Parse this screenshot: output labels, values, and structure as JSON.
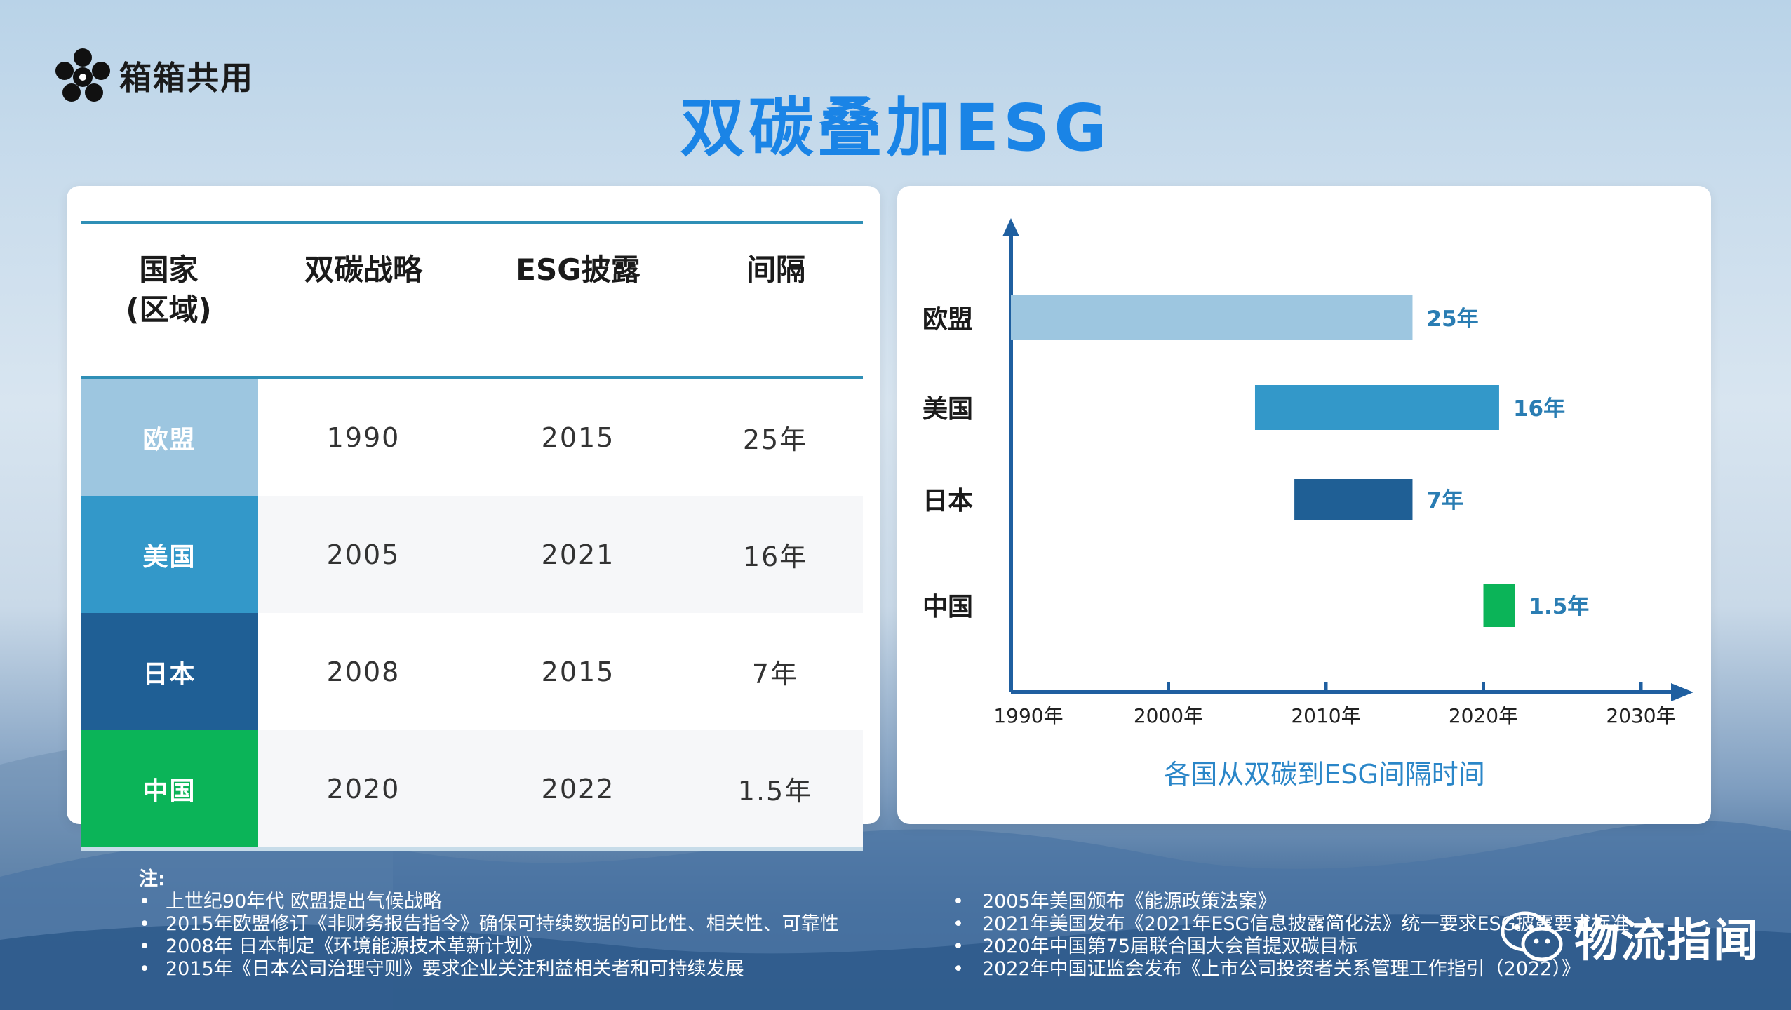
{
  "logo": {
    "text": "箱箱共用",
    "icon": "flower-logo-icon"
  },
  "title": "双碳叠加ESG",
  "table": {
    "headers": [
      "国家\n(区域)",
      "双碳战略",
      "ESG披露",
      "间隔"
    ],
    "rows": [
      {
        "country": "欧盟",
        "carbon": "1990",
        "esg": "2015",
        "gap": "25年",
        "color": "#9dc6e0"
      },
      {
        "country": "美国",
        "carbon": "2005",
        "esg": "2021",
        "gap": "16年",
        "color": "#3398c9"
      },
      {
        "country": "日本",
        "carbon": "2008",
        "esg": "2015",
        "gap": "7年",
        "color": "#1f5f95"
      },
      {
        "country": "中国",
        "carbon": "2020",
        "esg": "2022",
        "gap": "1.5年",
        "color": "#0bb458"
      }
    ]
  },
  "chart_data": {
    "type": "bar",
    "subtype": "floating-horizontal",
    "title": "各国从双碳到ESG间隔时间",
    "x_tick_labels": [
      "1990年",
      "2000年",
      "2010年",
      "2020年",
      "2030年"
    ],
    "x_ticks": [
      1990,
      2000,
      2010,
      2020,
      2030
    ],
    "xlim": [
      1990,
      2036
    ],
    "categories": [
      "欧盟",
      "美国",
      "日本",
      "中国"
    ],
    "bars": [
      {
        "label": "欧盟",
        "start": 1990,
        "end": 2015.5,
        "value_label": "25年",
        "color": "#9dc6e0",
        "label_color": "#2a7db3"
      },
      {
        "label": "美国",
        "start": 2005.5,
        "end": 2021,
        "value_label": "16年",
        "color": "#3398c9",
        "label_color": "#2a7db3"
      },
      {
        "label": "日本",
        "start": 2008,
        "end": 2015.5,
        "value_label": "7年",
        "color": "#1f5f95",
        "label_color": "#2a7db3"
      },
      {
        "label": "中国",
        "start": 2020,
        "end": 2022,
        "value_label": "1.5年",
        "color": "#0bb458",
        "label_color": "#2a7db3"
      }
    ],
    "axis_color": "#1f5fa0",
    "grid": false,
    "legend": "none"
  },
  "notes": {
    "heading": "注:",
    "left": [
      "上世纪90年代 欧盟提出气候战略",
      "2015年欧盟修订《非财务报告指令》确保可持续数据的可比性、相关性、可靠性",
      "2008年 日本制定《环境能源技术革新计划》",
      "2015年《日本公司治理守则》要求企业关注利益相关者和可持续发展"
    ],
    "right": [
      "2005年美国颁布《能源政策法案》",
      "2021年美国发布《2021年ESG信息披露简化法》统一要求ESG披露要求标准",
      "2020年中国第75届联合国大会首提双碳目标",
      "2022年中国证监会发布《上市公司投资者关系管理工作指引（2022）》"
    ]
  },
  "watermark": {
    "text": "物流指闻",
    "icon": "wechat-icon"
  }
}
